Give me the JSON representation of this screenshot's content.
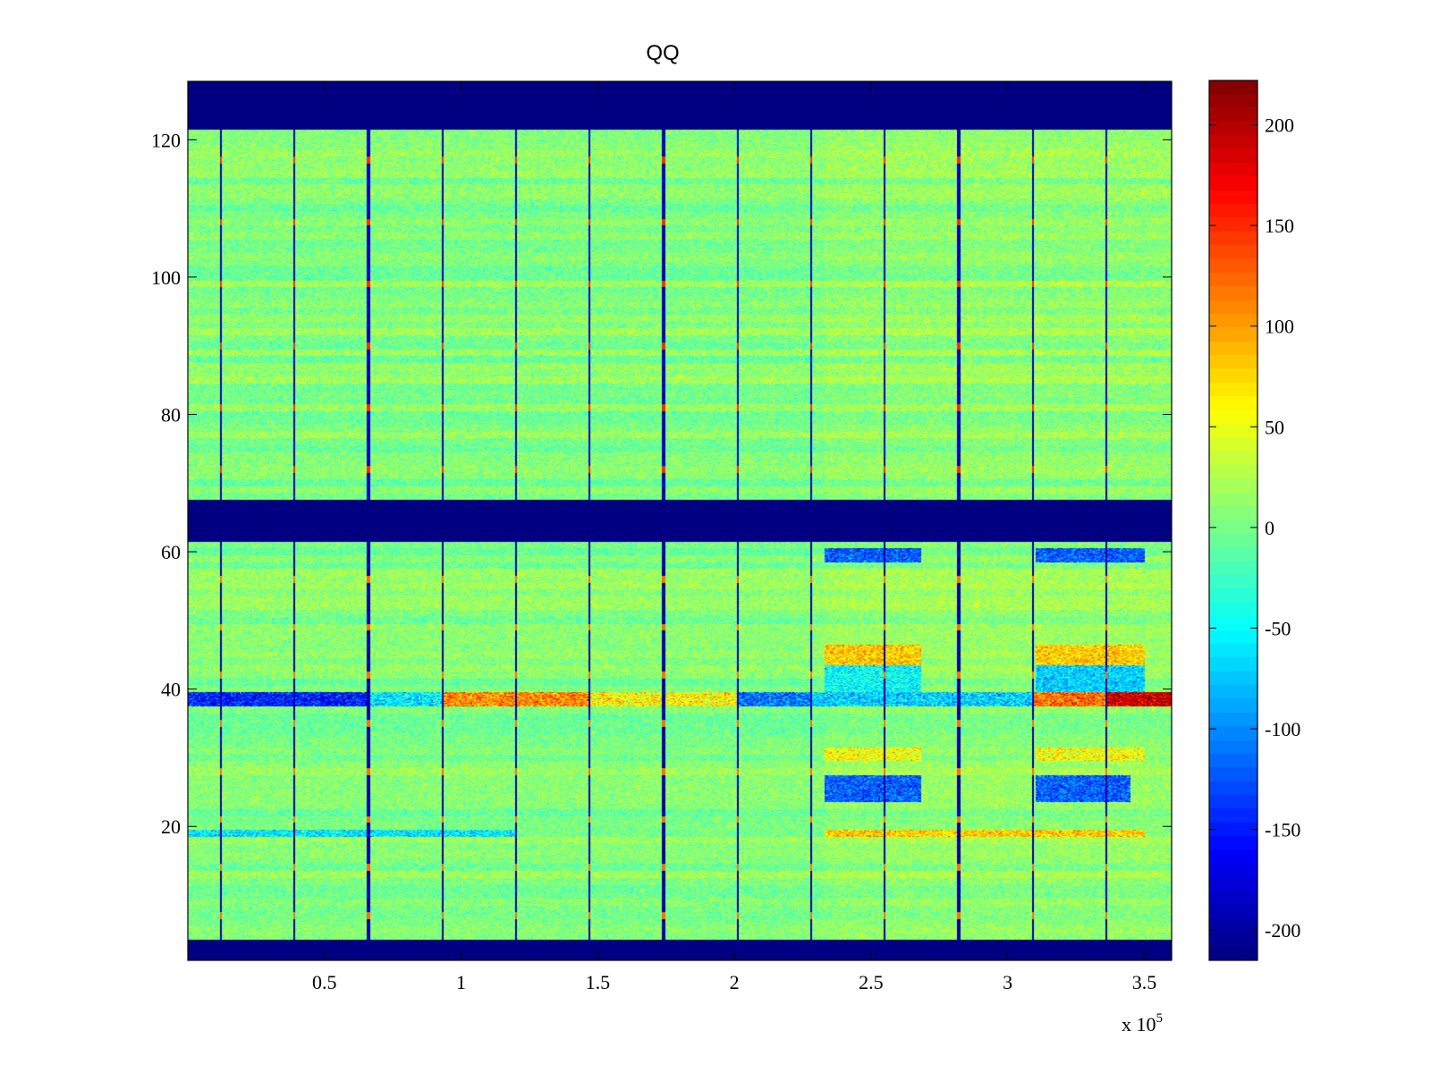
{
  "chart_data": {
    "type": "heatmap",
    "title": "QQ",
    "xlabel": "",
    "ylabel": "",
    "x_exponent_label": "x 10",
    "x_exponent_power": "5",
    "xlim": [
      0,
      3.6
    ],
    "ylim": [
      0.5,
      128.5
    ],
    "xticks": [
      0.5,
      1,
      1.5,
      2,
      2.5,
      3,
      3.5
    ],
    "xtick_labels": [
      "0.5",
      "1",
      "1.5",
      "2",
      "2.5",
      "3",
      "3.5"
    ],
    "yticks": [
      20,
      40,
      60,
      80,
      100,
      120
    ],
    "ytick_labels": [
      "20",
      "40",
      "60",
      "80",
      "100",
      "120"
    ],
    "colorbar": {
      "clim": [
        -215,
        222
      ],
      "ticks": [
        200,
        150,
        100,
        50,
        0,
        -50,
        -100,
        -150,
        -200
      ],
      "tick_labels": [
        "200",
        "150",
        "100",
        "50",
        "0",
        "-50",
        "-100",
        "-150",
        "-200"
      ],
      "colormap": "jet"
    },
    "blank_row_bands": [
      {
        "from": 0.5,
        "to": 3.5,
        "value": -215
      },
      {
        "from": 61.5,
        "to": 67.5,
        "value": -215
      },
      {
        "from": 121.5,
        "to": 128.5,
        "value": -215
      }
    ],
    "background_level": {
      "mean": 5,
      "spread": 30
    },
    "segment_boundaries_x": [
      0.12,
      0.39,
      0.66,
      0.93,
      1.2,
      1.47,
      1.74,
      2.01,
      2.28,
      2.55,
      2.82,
      3.09,
      3.36
    ],
    "row_39_profile": [
      {
        "x_from": 0.0,
        "x_to": 0.66,
        "value": -150
      },
      {
        "x_from": 0.66,
        "x_to": 0.93,
        "value": -60
      },
      {
        "x_from": 0.93,
        "x_to": 1.47,
        "value": 110
      },
      {
        "x_from": 1.47,
        "x_to": 2.01,
        "value": 60
      },
      {
        "x_from": 2.01,
        "x_to": 2.28,
        "value": -110
      },
      {
        "x_from": 2.28,
        "x_to": 3.09,
        "value": -70
      },
      {
        "x_from": 3.09,
        "x_to": 3.36,
        "value": 120
      },
      {
        "x_from": 3.36,
        "x_to": 3.6,
        "value": 190
      }
    ],
    "anomaly_patches": [
      {
        "rows": [
          59,
          60
        ],
        "x_from": 2.33,
        "x_to": 2.68,
        "value": -120
      },
      {
        "rows": [
          59,
          60
        ],
        "x_from": 3.1,
        "x_to": 3.5,
        "value": -120
      },
      {
        "rows": [
          44,
          46
        ],
        "x_from": 2.33,
        "x_to": 2.68,
        "value": 80
      },
      {
        "rows": [
          44,
          46
        ],
        "x_from": 3.1,
        "x_to": 3.5,
        "value": 80
      },
      {
        "rows": [
          40,
          43
        ],
        "x_from": 2.33,
        "x_to": 2.68,
        "value": -50
      },
      {
        "rows": [
          40,
          43
        ],
        "x_from": 3.1,
        "x_to": 3.5,
        "value": -70
      },
      {
        "rows": [
          30,
          31
        ],
        "x_from": 2.33,
        "x_to": 2.68,
        "value": 55
      },
      {
        "rows": [
          30,
          31
        ],
        "x_from": 3.1,
        "x_to": 3.5,
        "value": 55
      },
      {
        "rows": [
          24,
          27
        ],
        "x_from": 2.33,
        "x_to": 2.68,
        "value": -120
      },
      {
        "rows": [
          24,
          27
        ],
        "x_from": 3.1,
        "x_to": 3.45,
        "value": -120
      },
      {
        "rows": [
          19,
          19
        ],
        "x_from": 0.0,
        "x_to": 1.2,
        "value": -60
      },
      {
        "rows": [
          19,
          19
        ],
        "x_from": 2.33,
        "x_to": 3.5,
        "value": 80
      }
    ]
  }
}
